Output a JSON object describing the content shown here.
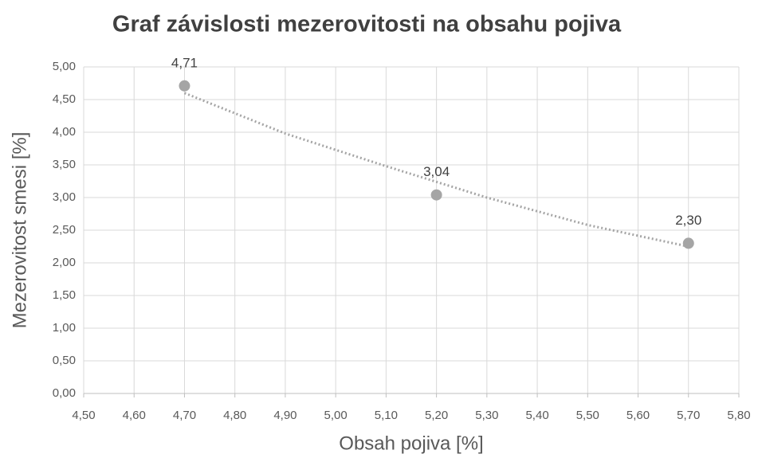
{
  "chart_data": {
    "type": "scatter",
    "title": "Graf závislosti mezerovitosti na obsahu pojiva",
    "x_label": "Obsah pojiva [%]",
    "y_label": "Mezerovitost smesi [%]",
    "series": [
      {
        "color": "#a5a5a5",
        "x": [
          4.7,
          5.2,
          5.7
        ],
        "values": [
          4.71,
          3.04,
          2.3
        ],
        "value_labels": [
          "4,71",
          "3,04",
          "2,30"
        ]
      }
    ],
    "trendline": {
      "color": "#a5a5a5",
      "x": [
        4.7,
        4.9,
        5.1,
        5.3,
        5.5,
        5.7
      ],
      "values": [
        4.6,
        3.98,
        3.48,
        3.0,
        2.58,
        2.25
      ]
    },
    "xlim": [
      4.5,
      5.8
    ],
    "xticks": [
      {
        "value": 4.5,
        "label": "4,50"
      },
      {
        "value": 4.6,
        "label": "4,60"
      },
      {
        "value": 4.7,
        "label": "4,70"
      },
      {
        "value": 4.8,
        "label": "4,80"
      },
      {
        "value": 4.9,
        "label": "4,90"
      },
      {
        "value": 5.0,
        "label": "5,00"
      },
      {
        "value": 5.1,
        "label": "5,10"
      },
      {
        "value": 5.2,
        "label": "5,20"
      },
      {
        "value": 5.3,
        "label": "5,30"
      },
      {
        "value": 5.4,
        "label": "5,40"
      },
      {
        "value": 5.5,
        "label": "5,50"
      },
      {
        "value": 5.6,
        "label": "5,60"
      },
      {
        "value": 5.7,
        "label": "5,70"
      },
      {
        "value": 5.8,
        "label": "5,80"
      }
    ],
    "ylim": [
      0,
      5
    ],
    "yticks": [
      {
        "value": 0,
        "label": "0,00"
      },
      {
        "value": 0.5,
        "label": "0,50"
      },
      {
        "value": 1,
        "label": "1,00"
      },
      {
        "value": 1.5,
        "label": "1,50"
      },
      {
        "value": 2,
        "label": "2,00"
      },
      {
        "value": 2.5,
        "label": "2,50"
      },
      {
        "value": 3,
        "label": "3,00"
      },
      {
        "value": 3.5,
        "label": "3,50"
      },
      {
        "value": 4,
        "label": "4,00"
      },
      {
        "value": 4.5,
        "label": "4,50"
      },
      {
        "value": 5,
        "label": "5,00"
      }
    ],
    "grid": true
  }
}
